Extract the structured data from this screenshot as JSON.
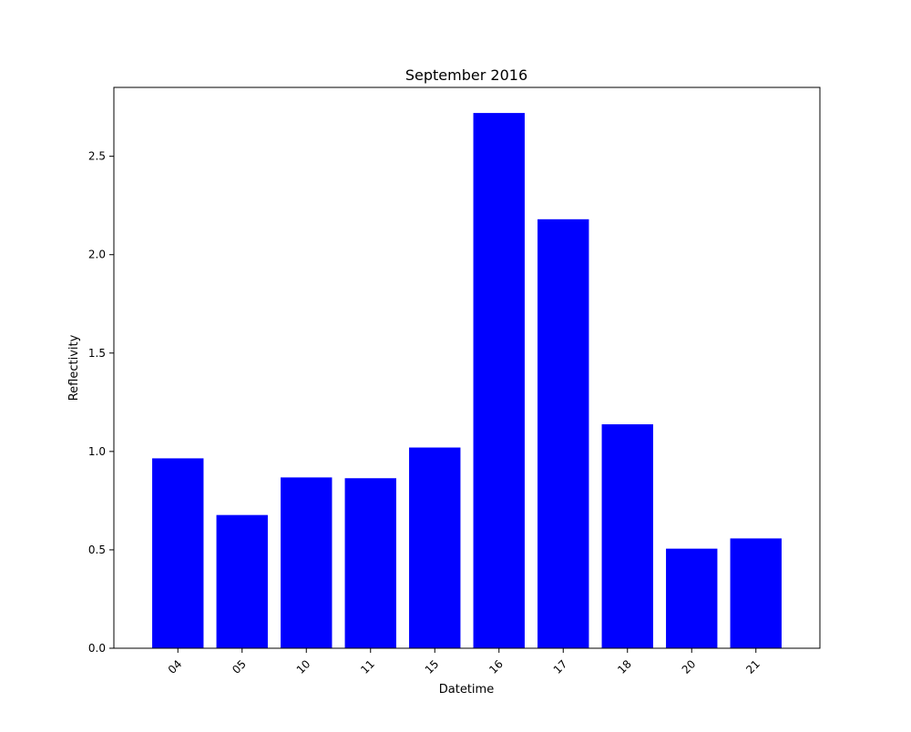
{
  "chart_data": {
    "type": "bar",
    "title": "September 2016",
    "xlabel": "Datetime",
    "ylabel": "Reflectivity",
    "categories": [
      "04",
      "05",
      "10",
      "11",
      "15",
      "16",
      "17",
      "18",
      "20",
      "21"
    ],
    "values": [
      0.965,
      0.677,
      0.868,
      0.864,
      1.02,
      2.72,
      2.18,
      1.138,
      0.506,
      0.558
    ],
    "ylim": [
      0,
      2.85
    ],
    "yticks": [
      "0.0",
      "0.5",
      "1.0",
      "1.5",
      "2.0",
      "2.5"
    ],
    "xtick_rotation": "45 degrees",
    "bar_color": "#0000ff",
    "grid": false,
    "legend": "none"
  }
}
